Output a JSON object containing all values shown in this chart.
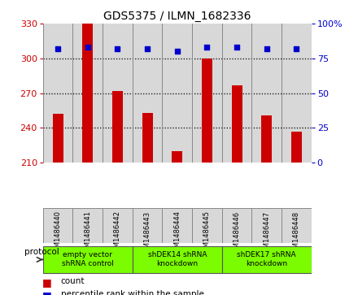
{
  "title": "GDS5375 / ILMN_1682336",
  "samples": [
    "GSM1486440",
    "GSM1486441",
    "GSM1486442",
    "GSM1486443",
    "GSM1486444",
    "GSM1486445",
    "GSM1486446",
    "GSM1486447",
    "GSM1486448"
  ],
  "counts": [
    252,
    331,
    272,
    253,
    220,
    300,
    277,
    251,
    237
  ],
  "percentile_ranks": [
    82,
    83,
    82,
    82,
    80,
    83,
    83,
    82,
    82
  ],
  "ylim_left": [
    210,
    330
  ],
  "ylim_right": [
    0,
    100
  ],
  "yticks_left": [
    210,
    240,
    270,
    300,
    330
  ],
  "yticks_right": [
    0,
    25,
    50,
    75,
    100
  ],
  "bar_color": "#cc0000",
  "dot_color": "#0000cc",
  "bar_bg_color": "#d8d8d8",
  "protocol_groups": [
    {
      "label": "empty vector\nshRNA control",
      "start": 0,
      "end": 3,
      "color": "#7cfc00"
    },
    {
      "label": "shDEK14 shRNA\nknockdown",
      "start": 3,
      "end": 6,
      "color": "#7cfc00"
    },
    {
      "label": "shDEK17 shRNA\nknockdown",
      "start": 6,
      "end": 9,
      "color": "#7cfc00"
    }
  ],
  "protocol_label": "protocol",
  "legend_count_label": "count",
  "legend_percentile_label": "percentile rank within the sample",
  "bar_width": 0.35,
  "separator_color": "#888888",
  "title_fontsize": 10
}
